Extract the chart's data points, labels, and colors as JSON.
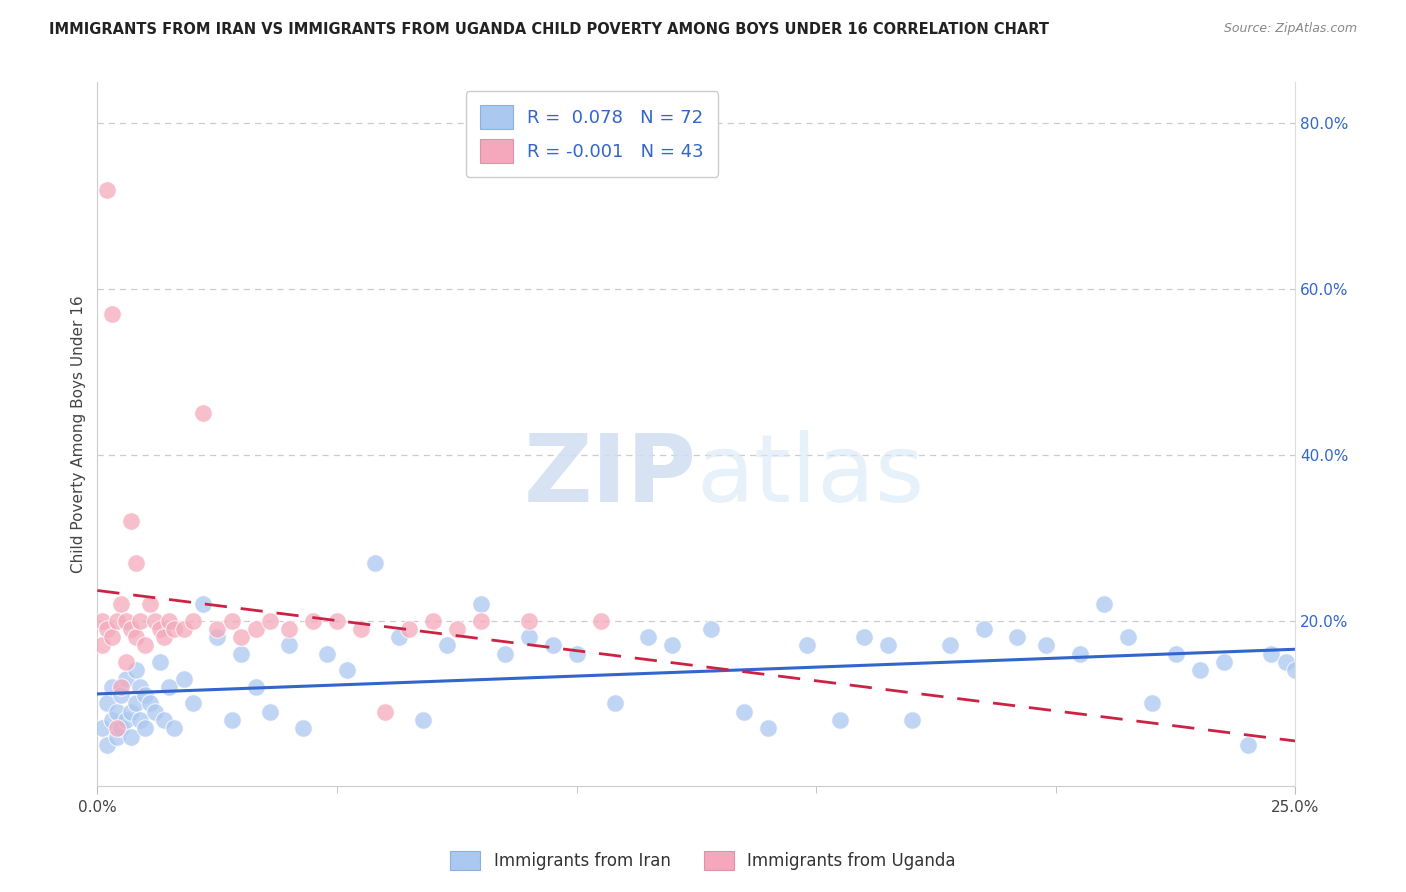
{
  "title": "IMMIGRANTS FROM IRAN VS IMMIGRANTS FROM UGANDA CHILD POVERTY AMONG BOYS UNDER 16 CORRELATION CHART",
  "source": "Source: ZipAtlas.com",
  "ylabel": "Child Poverty Among Boys Under 16",
  "xlim": [
    0,
    0.25
  ],
  "ylim": [
    0,
    0.85
  ],
  "yticks_right": [
    0.2,
    0.4,
    0.6,
    0.8
  ],
  "ytick_labels_right": [
    "20.0%",
    "40.0%",
    "60.0%",
    "80.0%"
  ],
  "iran_color": "#aac8f0",
  "uganda_color": "#f5a8bc",
  "iran_R": 0.078,
  "iran_N": 72,
  "uganda_R": -0.001,
  "uganda_N": 43,
  "trend_iran_color": "#3366cc",
  "trend_uganda_color": "#cc2244",
  "watermark_zip": "ZIP",
  "watermark_atlas": "atlas",
  "legend_iran": "Immigrants from Iran",
  "legend_uganda": "Immigrants from Uganda",
  "iran_x": [
    0.001,
    0.002,
    0.002,
    0.003,
    0.003,
    0.004,
    0.004,
    0.005,
    0.005,
    0.006,
    0.006,
    0.007,
    0.007,
    0.008,
    0.008,
    0.009,
    0.009,
    0.01,
    0.01,
    0.011,
    0.012,
    0.013,
    0.014,
    0.015,
    0.016,
    0.018,
    0.02,
    0.022,
    0.025,
    0.028,
    0.03,
    0.033,
    0.036,
    0.04,
    0.043,
    0.048,
    0.052,
    0.058,
    0.063,
    0.068,
    0.073,
    0.08,
    0.085,
    0.09,
    0.095,
    0.1,
    0.108,
    0.115,
    0.12,
    0.128,
    0.135,
    0.14,
    0.148,
    0.155,
    0.16,
    0.165,
    0.17,
    0.178,
    0.185,
    0.192,
    0.198,
    0.205,
    0.21,
    0.215,
    0.22,
    0.225,
    0.23,
    0.235,
    0.24,
    0.245,
    0.248,
    0.25
  ],
  "iran_y": [
    0.07,
    0.05,
    0.1,
    0.08,
    0.12,
    0.06,
    0.09,
    0.11,
    0.07,
    0.08,
    0.13,
    0.09,
    0.06,
    0.14,
    0.1,
    0.08,
    0.12,
    0.11,
    0.07,
    0.1,
    0.09,
    0.15,
    0.08,
    0.12,
    0.07,
    0.13,
    0.1,
    0.22,
    0.18,
    0.08,
    0.16,
    0.12,
    0.09,
    0.17,
    0.07,
    0.16,
    0.14,
    0.27,
    0.18,
    0.08,
    0.17,
    0.22,
    0.16,
    0.18,
    0.17,
    0.16,
    0.1,
    0.18,
    0.17,
    0.19,
    0.09,
    0.07,
    0.17,
    0.08,
    0.18,
    0.17,
    0.08,
    0.17,
    0.19,
    0.18,
    0.17,
    0.16,
    0.22,
    0.18,
    0.1,
    0.16,
    0.14,
    0.15,
    0.05,
    0.16,
    0.15,
    0.14
  ],
  "uganda_x": [
    0.001,
    0.001,
    0.002,
    0.002,
    0.003,
    0.003,
    0.004,
    0.004,
    0.005,
    0.005,
    0.006,
    0.006,
    0.007,
    0.007,
    0.008,
    0.008,
    0.009,
    0.01,
    0.011,
    0.012,
    0.013,
    0.014,
    0.015,
    0.016,
    0.018,
    0.02,
    0.022,
    0.025,
    0.028,
    0.03,
    0.033,
    0.036,
    0.04,
    0.045,
    0.05,
    0.055,
    0.06,
    0.065,
    0.07,
    0.075,
    0.08,
    0.09,
    0.105
  ],
  "uganda_y": [
    0.2,
    0.17,
    0.72,
    0.19,
    0.57,
    0.18,
    0.2,
    0.07,
    0.22,
    0.12,
    0.2,
    0.15,
    0.32,
    0.19,
    0.27,
    0.18,
    0.2,
    0.17,
    0.22,
    0.2,
    0.19,
    0.18,
    0.2,
    0.19,
    0.19,
    0.2,
    0.45,
    0.19,
    0.2,
    0.18,
    0.19,
    0.2,
    0.19,
    0.2,
    0.2,
    0.19,
    0.09,
    0.19,
    0.2,
    0.19,
    0.2,
    0.2,
    0.2
  ]
}
